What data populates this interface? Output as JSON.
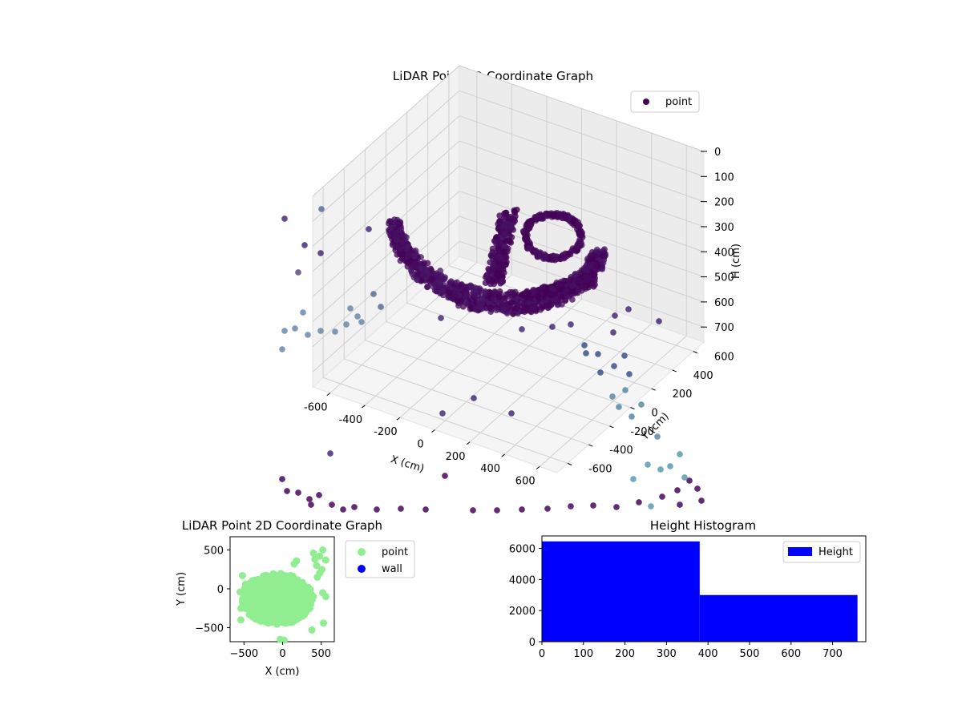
{
  "chart_data": [
    {
      "type": "scatter3d",
      "title": "LiDAR Point 3D Coordinate Graph",
      "xlabel": "X (cm)",
      "ylabel": "Y (cm)",
      "zlabel": "H (cm)",
      "xticks": [
        -600,
        -400,
        -200,
        0,
        200,
        400,
        600
      ],
      "yticks": [
        -600,
        -400,
        -200,
        0,
        200,
        400,
        600
      ],
      "zticks": [
        0,
        100,
        200,
        300,
        400,
        500,
        600,
        700
      ],
      "xlim": [
        -700,
        700
      ],
      "ylim": [
        -700,
        700
      ],
      "zlim": [
        0,
        760
      ],
      "zaxis_inverted": true,
      "legend": {
        "position": "top-right",
        "entries": [
          {
            "label": "point",
            "color": "#440154"
          }
        ]
      },
      "colormap": "viridis",
      "grid": true
    },
    {
      "type": "scatter",
      "title": "LiDAR Point 2D Coordinate Graph",
      "xlabel": "X (cm)",
      "ylabel": "Y (cm)",
      "xticks": [
        -500,
        0,
        500
      ],
      "yticks": [
        -500,
        0,
        500
      ],
      "xlim": [
        -680,
        670
      ],
      "ylim": [
        -680,
        670
      ],
      "legend": {
        "position": "outside-right",
        "entries": [
          {
            "label": "point",
            "color": "#90ee90"
          },
          {
            "label": "wall",
            "color": "#0000ff"
          }
        ]
      },
      "series": [
        {
          "name": "point",
          "color": "#90ee90",
          "x": [
            520,
            480,
            420,
            560,
            400,
            440,
            510,
            480,
            450,
            400,
            560,
            520,
            -540,
            -520,
            150,
            180,
            -540,
            380,
            530,
            -30,
            20,
            -480,
            -550
          ],
          "y": [
            500,
            420,
            380,
            370,
            460,
            300,
            250,
            200,
            150,
            -100,
            -100,
            -50,
            -400,
            170,
            320,
            360,
            -250,
            -530,
            -440,
            -650,
            -660,
            60,
            -40
          ]
        },
        {
          "name": "wall",
          "color": "#0000ff",
          "x": [],
          "y": []
        }
      ]
    },
    {
      "type": "histogram",
      "title": "Height Histogram",
      "xticks": [
        0,
        100,
        200,
        300,
        400,
        500,
        600,
        700
      ],
      "yticks": [
        0,
        2000,
        4000,
        6000
      ],
      "xlim": [
        0,
        780
      ],
      "ylim": [
        0,
        6800
      ],
      "legend": {
        "position": "top-right",
        "entries": [
          {
            "label": "Height",
            "color": "#0000ff"
          }
        ]
      },
      "bins": [
        {
          "x0": 0,
          "x1": 380,
          "count": 6450
        },
        {
          "x0": 380,
          "x1": 760,
          "count": 3000
        }
      ],
      "color": "#0000ff"
    }
  ]
}
